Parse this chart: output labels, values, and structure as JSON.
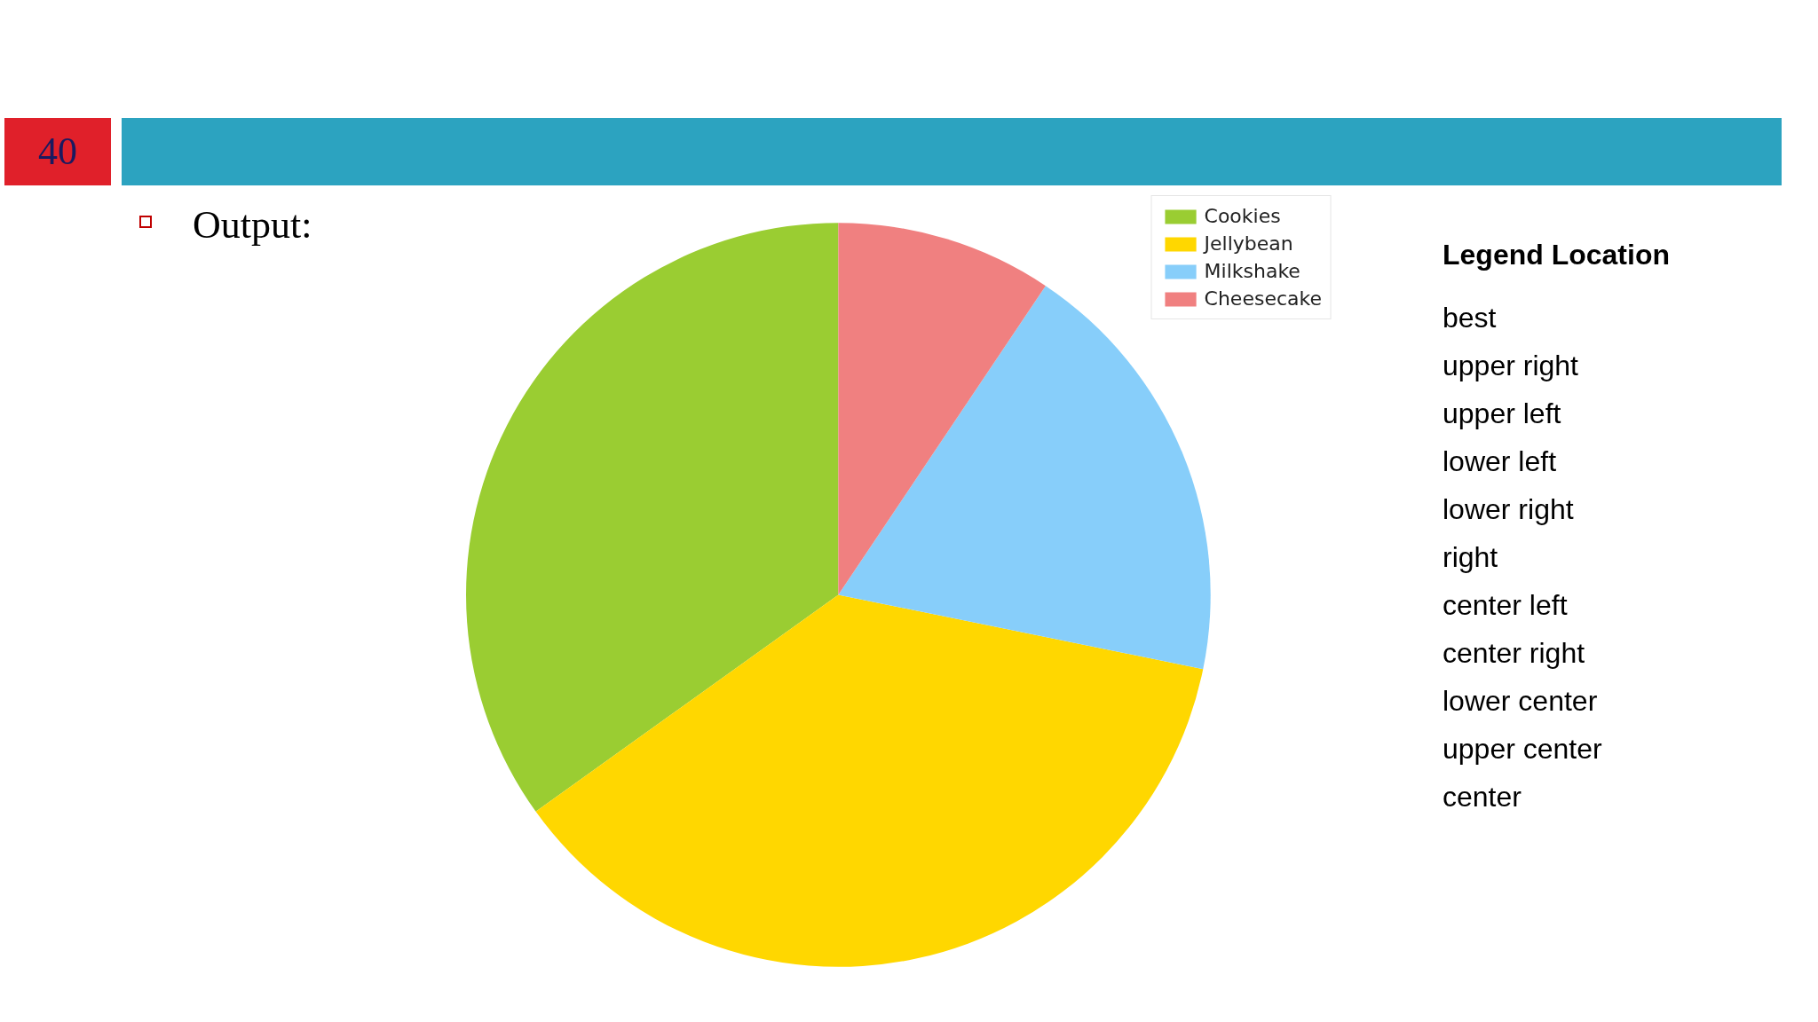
{
  "chart_data": {
    "type": "pie",
    "categories": [
      "Cookies",
      "Jellybean",
      "Milkshake",
      "Cheesecake"
    ],
    "values": [
      34.9,
      36.9,
      18.8,
      9.4
    ],
    "colors": [
      "#9acd32",
      "#ffd700",
      "#87cefa",
      "#f08080"
    ],
    "legend": "top right",
    "annotations": [
      "40",
      "Output:",
      "Legend Location",
      "best",
      "upper right",
      "upper left",
      "lower left",
      "lower right",
      "right",
      "center left",
      "center right",
      "lower center",
      "upper center",
      "center"
    ]
  }
}
